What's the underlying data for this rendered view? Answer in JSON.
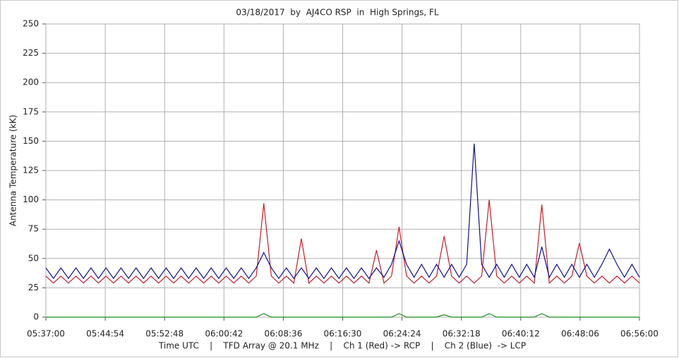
{
  "chart_data": {
    "type": "line",
    "title": "03/18/2017  by  AJ4CO RSP  in  High Springs, FL",
    "x_label": "Time UTC    |    TFD Array @ 20.1 MHz    |    Ch 1 (Red) -> RCP    |    Ch 2 (Blue)  -> LCP",
    "y_label": "Antenna Temperature (kK)",
    "xlim": [
      "05:37:00",
      "06:56:00"
    ],
    "xticks": [
      "05:37:00",
      "05:44:54",
      "05:52:48",
      "06:00:42",
      "06:08:36",
      "06:16:30",
      "06:24:24",
      "06:32:18",
      "06:40:12",
      "06:48:06",
      "06:56:00"
    ],
    "ylim": [
      0,
      250
    ],
    "yticks": [
      0,
      25,
      50,
      75,
      100,
      125,
      150,
      175,
      200,
      225,
      250
    ],
    "grid": true,
    "x": [
      "05:37:00",
      "05:38:00",
      "05:39:00",
      "05:40:00",
      "05:41:00",
      "05:42:00",
      "05:43:00",
      "05:44:00",
      "05:45:00",
      "05:46:00",
      "05:47:00",
      "05:48:00",
      "05:49:00",
      "05:50:00",
      "05:51:00",
      "05:52:00",
      "05:53:00",
      "05:54:00",
      "05:55:00",
      "05:56:00",
      "05:57:00",
      "05:58:00",
      "05:59:00",
      "06:00:00",
      "06:01:00",
      "06:02:00",
      "06:03:00",
      "06:04:00",
      "06:05:00",
      "06:06:00",
      "06:07:00",
      "06:08:00",
      "06:09:00",
      "06:10:00",
      "06:11:00",
      "06:12:00",
      "06:13:00",
      "06:14:00",
      "06:15:00",
      "06:16:00",
      "06:17:00",
      "06:18:00",
      "06:19:00",
      "06:20:00",
      "06:21:00",
      "06:22:00",
      "06:23:00",
      "06:24:00",
      "06:25:00",
      "06:26:00",
      "06:27:00",
      "06:28:00",
      "06:29:00",
      "06:30:00",
      "06:31:00",
      "06:32:00",
      "06:33:00",
      "06:34:00",
      "06:35:00",
      "06:36:00",
      "06:37:00",
      "06:38:00",
      "06:39:00",
      "06:40:00",
      "06:41:00",
      "06:42:00",
      "06:43:00",
      "06:44:00",
      "06:45:00",
      "06:46:00",
      "06:47:00",
      "06:48:00",
      "06:49:00",
      "06:50:00",
      "06:51:00",
      "06:52:00",
      "06:53:00",
      "06:54:00",
      "06:55:00",
      "06:56:00"
    ],
    "series": [
      {
        "color": "#c0202a",
        "values": [
          35,
          29,
          35,
          29,
          35,
          29,
          35,
          29,
          35,
          29,
          35,
          29,
          35,
          29,
          35,
          29,
          35,
          29,
          35,
          29,
          35,
          29,
          35,
          29,
          35,
          29,
          35,
          29,
          35,
          97,
          35,
          29,
          35,
          29,
          67,
          29,
          35,
          29,
          35,
          29,
          35,
          29,
          35,
          29,
          57,
          29,
          35,
          77,
          35,
          29,
          35,
          29,
          35,
          69,
          35,
          29,
          35,
          29,
          35,
          100,
          35,
          29,
          35,
          29,
          35,
          29,
          96,
          29,
          35,
          29,
          35,
          63,
          35,
          29,
          35,
          29,
          35,
          29,
          35,
          29
        ]
      },
      {
        "color": "#10108c",
        "values": [
          42,
          33,
          42,
          33,
          42,
          33,
          42,
          33,
          42,
          33,
          42,
          33,
          42,
          33,
          42,
          33,
          42,
          33,
          42,
          33,
          42,
          33,
          42,
          33,
          42,
          33,
          42,
          33,
          42,
          55,
          42,
          33,
          42,
          33,
          42,
          33,
          42,
          33,
          42,
          33,
          42,
          33,
          42,
          33,
          42,
          34,
          45,
          65,
          45,
          34,
          45,
          34,
          45,
          34,
          45,
          34,
          45,
          148,
          45,
          34,
          45,
          34,
          45,
          34,
          45,
          34,
          60,
          34,
          45,
          34,
          45,
          34,
          45,
          34,
          45,
          58,
          45,
          34,
          45,
          34
        ]
      },
      {
        "color": "#1a8a1a",
        "values": [
          0,
          0,
          0,
          0,
          0,
          0,
          0,
          0,
          0,
          0,
          0,
          0,
          0,
          0,
          0,
          0,
          0,
          0,
          0,
          0,
          0,
          0,
          0,
          0,
          0,
          0,
          0,
          0,
          0,
          3,
          0,
          0,
          0,
          0,
          0,
          0,
          0,
          0,
          0,
          0,
          0,
          0,
          0,
          0,
          0,
          0,
          0,
          3,
          0,
          0,
          0,
          0,
          0,
          2,
          0,
          0,
          0,
          0,
          0,
          3,
          0,
          0,
          0,
          0,
          0,
          0,
          3,
          0,
          0,
          0,
          0,
          0,
          0,
          0,
          0,
          0,
          0,
          0,
          0,
          0
        ]
      }
    ]
  }
}
